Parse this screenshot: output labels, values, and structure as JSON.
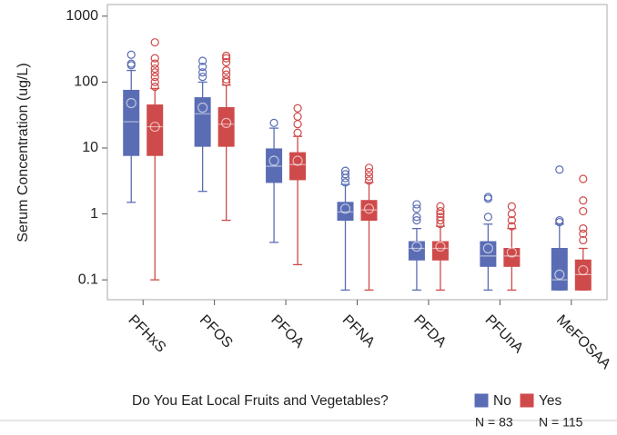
{
  "chart_data": {
    "type": "box",
    "log_scale": true,
    "ylabel": "Serum Concentration (ug/L)",
    "categories": [
      "PFHxS",
      "PFOS",
      "PFOA",
      "PFNA",
      "PFDA",
      "PFUnA",
      "MeFOSAA"
    ],
    "ylim": [
      0.05,
      1500
    ],
    "yticks": [
      0.1,
      1,
      10,
      100,
      1000
    ],
    "legend_title": "Do You Eat Local Fruits and Vegetables?",
    "legend_position": "bottom",
    "series": [
      {
        "name": "No",
        "n_label": "N = 83",
        "color": "#5a6db4",
        "boxes": [
          {
            "min": 1.5,
            "q1": 7.7,
            "median": 25,
            "q3": 75,
            "max": 150,
            "mean": 48,
            "outliers": [
              260,
              190,
              180
            ]
          },
          {
            "min": 2.2,
            "q1": 10.6,
            "median": 33,
            "q3": 58,
            "max": 100,
            "mean": 41,
            "outliers": [
              210,
              170,
              140,
              120
            ]
          },
          {
            "min": 0.37,
            "q1": 3,
            "median": 5.3,
            "q3": 9.7,
            "max": 20,
            "mean": 6.4,
            "outliers": [
              24
            ]
          },
          {
            "min": 0.07,
            "q1": 0.8,
            "median": 1.07,
            "q3": 1.5,
            "max": 2.8,
            "mean": 1.2,
            "outliers": [
              4.5,
              4,
              3.5,
              3
            ]
          },
          {
            "min": 0.07,
            "q1": 0.2,
            "median": 0.3,
            "q3": 0.38,
            "max": 0.6,
            "mean": 0.32,
            "outliers": [
              1.4,
              1.2,
              0.9,
              0.8
            ]
          },
          {
            "min": 0.07,
            "q1": 0.16,
            "median": 0.23,
            "q3": 0.38,
            "max": 0.7,
            "mean": 0.3,
            "outliers": [
              1.8,
              1.7,
              0.9
            ]
          },
          {
            "min": 0.07,
            "q1": 0.07,
            "median": 0.1,
            "q3": 0.3,
            "max": 0.7,
            "mean": 0.12,
            "outliers": [
              4.7,
              0.8,
              0.75
            ]
          }
        ]
      },
      {
        "name": "Yes",
        "n_label": "N = 115",
        "color": "#cf4a4a",
        "boxes": [
          {
            "min": 0.1,
            "q1": 7.7,
            "median": 21,
            "q3": 45,
            "max": 80,
            "mean": 21,
            "outliers": [
              400,
              230,
              190,
              160,
              140,
              120,
              100,
              85
            ]
          },
          {
            "min": 0.8,
            "q1": 10.6,
            "median": 23,
            "q3": 41,
            "max": 90,
            "mean": 24,
            "outliers": [
              250,
              230,
              200,
              150,
              130,
              110,
              100
            ]
          },
          {
            "min": 0.17,
            "q1": 3.3,
            "median": 5.6,
            "q3": 8.5,
            "max": 15,
            "mean": 6.4,
            "outliers": [
              40,
              30,
              23,
              17
            ]
          },
          {
            "min": 0.07,
            "q1": 0.8,
            "median": 1.15,
            "q3": 1.6,
            "max": 3,
            "mean": 1.2,
            "outliers": [
              5,
              4.3,
              3.7,
              3.2
            ]
          },
          {
            "min": 0.07,
            "q1": 0.2,
            "median": 0.3,
            "q3": 0.38,
            "max": 0.65,
            "mean": 0.32,
            "outliers": [
              1.3,
              1.1,
              1,
              0.9,
              0.8,
              0.7
            ]
          },
          {
            "min": 0.07,
            "q1": 0.16,
            "median": 0.23,
            "q3": 0.3,
            "max": 0.6,
            "mean": 0.26,
            "outliers": [
              1.3,
              1,
              0.8,
              0.65
            ]
          },
          {
            "min": 0.07,
            "q1": 0.07,
            "median": 0.12,
            "q3": 0.2,
            "max": 0.3,
            "mean": 0.14,
            "outliers": [
              3.4,
              1.6,
              1.1,
              0.6,
              0.5,
              0.4
            ]
          }
        ]
      }
    ]
  }
}
